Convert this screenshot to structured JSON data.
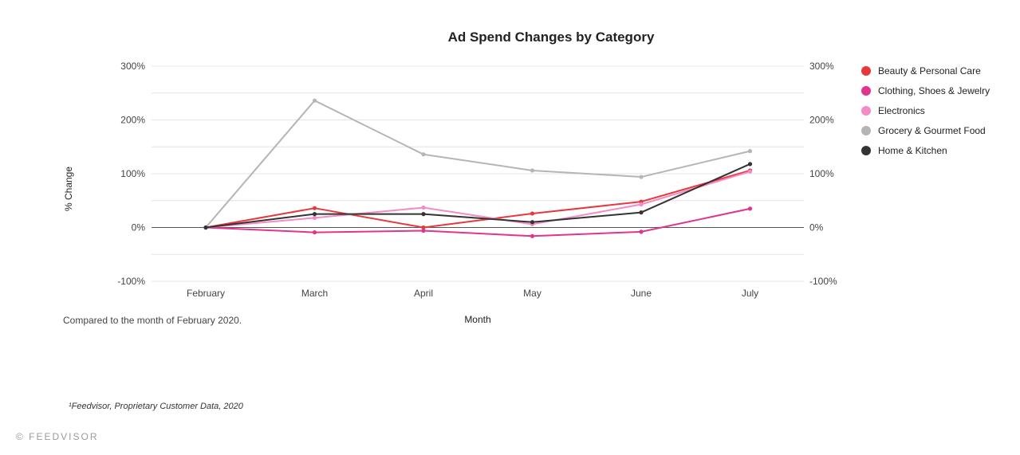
{
  "chart_data": {
    "type": "line",
    "title": "Ad Spend Changes by Category",
    "xlabel": "Month",
    "ylabel": "% Change",
    "categories": [
      "February",
      "March",
      "April",
      "May",
      "June",
      "July"
    ],
    "ylim": [
      -100,
      300
    ],
    "yticks": [
      -100,
      0,
      100,
      200,
      300
    ],
    "ytick_labels": [
      "-100%",
      "0%",
      "100%",
      "200%",
      "300%"
    ],
    "grid": true,
    "legend_position": "right",
    "series": [
      {
        "name": "Beauty & Personal Care",
        "color": "#e8383d",
        "values": [
          0,
          36,
          0,
          26,
          48,
          106
        ]
      },
      {
        "name": "Clothing, Shoes & Jewelry",
        "color": "#e0348f",
        "values": [
          0,
          -9,
          -6,
          -16,
          -8,
          35
        ]
      },
      {
        "name": "Electronics",
        "color": "#f48ac6",
        "values": [
          0,
          18,
          37,
          6,
          43,
          104
        ]
      },
      {
        "name": "Grocery & Gourmet Food",
        "color": "#b5b5b5",
        "values": [
          0,
          236,
          136,
          106,
          94,
          142
        ]
      },
      {
        "name": "Home & Kitchen",
        "color": "#333333",
        "values": [
          0,
          25,
          25,
          10,
          28,
          118
        ]
      }
    ]
  },
  "note": "Compared to the month of February 2020.",
  "source": "¹Feedvisor, Proprietary Customer Data, 2020",
  "footer": "© FEEDVISOR"
}
